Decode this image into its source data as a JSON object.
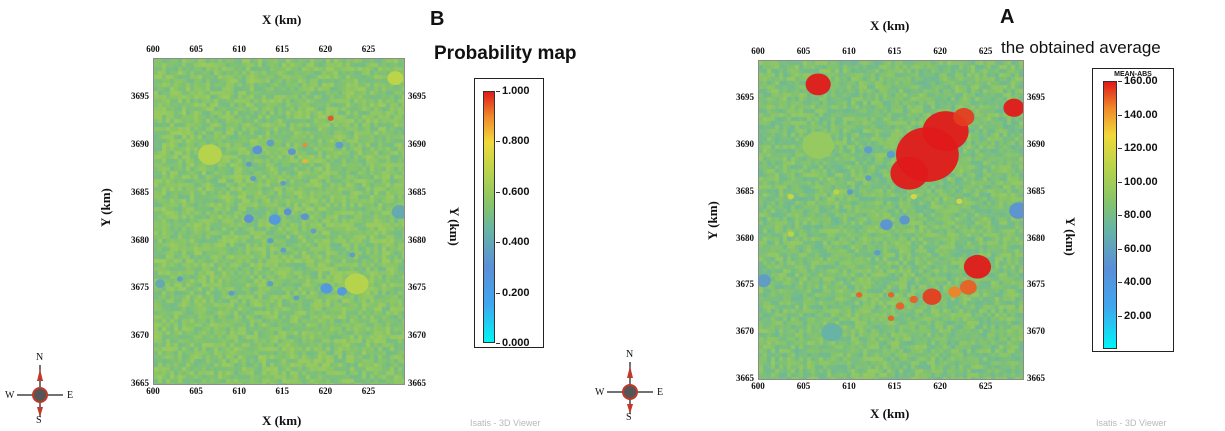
{
  "chart_data": [
    {
      "id": "B",
      "type": "heatmap",
      "panel_letter": "B",
      "title": "Probability map",
      "xlabel": "X (km)",
      "ylabel": "Y (km)",
      "xlim": [
        600,
        629
      ],
      "ylim": [
        3665,
        3699
      ],
      "x_ticks": [
        "600",
        "605",
        "610",
        "615",
        "620",
        "625"
      ],
      "y_ticks": [
        "3665",
        "3670",
        "3675",
        "3680",
        "3685",
        "3690",
        "3695"
      ],
      "colorbar": {
        "title": "",
        "range": [
          0.0,
          1.0
        ],
        "labels": [
          "1.000",
          "0.800",
          "0.600",
          "0.400",
          "0.200",
          "0.000"
        ],
        "label_values": [
          1.0,
          0.8,
          0.6,
          0.4,
          0.2,
          0.0
        ]
      },
      "background_value": 0.55,
      "anomalies": [
        {
          "x": 612.0,
          "y": 3689.5,
          "value": 0.3,
          "r": 0.5
        },
        {
          "x": 613.5,
          "y": 3690.2,
          "value": 0.35,
          "r": 0.4
        },
        {
          "x": 611.0,
          "y": 3688.0,
          "value": 0.35,
          "r": 0.3
        },
        {
          "x": 616.0,
          "y": 3689.3,
          "value": 0.32,
          "r": 0.4
        },
        {
          "x": 621.5,
          "y": 3690.0,
          "value": 0.35,
          "r": 0.4
        },
        {
          "x": 620.5,
          "y": 3692.8,
          "value": 0.95,
          "r": 0.3
        },
        {
          "x": 617.5,
          "y": 3690.0,
          "value": 0.9,
          "r": 0.25
        },
        {
          "x": 617.5,
          "y": 3688.3,
          "value": 0.85,
          "r": 0.25
        },
        {
          "x": 611.5,
          "y": 3686.5,
          "value": 0.35,
          "r": 0.3
        },
        {
          "x": 615.0,
          "y": 3686.0,
          "value": 0.35,
          "r": 0.3
        },
        {
          "x": 611.0,
          "y": 3682.3,
          "value": 0.3,
          "r": 0.5
        },
        {
          "x": 614.0,
          "y": 3682.2,
          "value": 0.25,
          "r": 0.6
        },
        {
          "x": 615.5,
          "y": 3683.0,
          "value": 0.3,
          "r": 0.4
        },
        {
          "x": 617.5,
          "y": 3682.5,
          "value": 0.32,
          "r": 0.4
        },
        {
          "x": 618.5,
          "y": 3681.0,
          "value": 0.35,
          "r": 0.3
        },
        {
          "x": 613.5,
          "y": 3680.0,
          "value": 0.35,
          "r": 0.3
        },
        {
          "x": 615.0,
          "y": 3679.0,
          "value": 0.35,
          "r": 0.3
        },
        {
          "x": 620.0,
          "y": 3675.0,
          "value": 0.25,
          "r": 0.6
        },
        {
          "x": 621.8,
          "y": 3674.7,
          "value": 0.25,
          "r": 0.5
        },
        {
          "x": 613.5,
          "y": 3675.5,
          "value": 0.35,
          "r": 0.3
        },
        {
          "x": 616.5,
          "y": 3674.0,
          "value": 0.35,
          "r": 0.3
        },
        {
          "x": 609.0,
          "y": 3674.5,
          "value": 0.35,
          "r": 0.3
        },
        {
          "x": 603.0,
          "y": 3676.0,
          "value": 0.35,
          "r": 0.3
        },
        {
          "x": 600.7,
          "y": 3675.5,
          "value": 0.4,
          "r": 0.5
        },
        {
          "x": 623.0,
          "y": 3678.5,
          "value": 0.35,
          "r": 0.3
        },
        {
          "x": 606.5,
          "y": 3689.0,
          "value": 0.68,
          "r": 1.2
        },
        {
          "x": 623.5,
          "y": 3675.5,
          "value": 0.68,
          "r": 1.2
        },
        {
          "x": 628.0,
          "y": 3697.0,
          "value": 0.7,
          "r": 0.8
        },
        {
          "x": 628.5,
          "y": 3683.0,
          "value": 0.4,
          "r": 0.8
        }
      ]
    },
    {
      "id": "A",
      "type": "heatmap",
      "panel_letter": "A",
      "title": "the obtained average",
      "xlabel": "X (km)",
      "ylabel": "Y (km)",
      "xlim": [
        600,
        629
      ],
      "ylim": [
        3665,
        3699
      ],
      "x_ticks": [
        "600",
        "605",
        "610",
        "615",
        "620",
        "625"
      ],
      "y_ticks": [
        "3665",
        "3670",
        "3675",
        "3680",
        "3685",
        "3690",
        "3695"
      ],
      "colorbar": {
        "title": "MEAN-ABS",
        "range": [
          0,
          160
        ],
        "labels": [
          "160.00",
          "140.00",
          "120.00",
          "100.00",
          "80.00",
          "60.00",
          "40.00",
          "20.00"
        ],
        "label_values": [
          160,
          140,
          120,
          100,
          80,
          60,
          40,
          20
        ]
      },
      "background_value": 85,
      "anomalies": [
        {
          "x": 606.5,
          "y": 3696.5,
          "value": 160,
          "r": 1.2
        },
        {
          "x": 618.5,
          "y": 3689.0,
          "value": 160,
          "r": 3.0
        },
        {
          "x": 620.5,
          "y": 3691.5,
          "value": 160,
          "r": 2.2
        },
        {
          "x": 616.5,
          "y": 3687.0,
          "value": 160,
          "r": 1.8
        },
        {
          "x": 622.5,
          "y": 3693.0,
          "value": 155,
          "r": 1.0
        },
        {
          "x": 628.0,
          "y": 3694.0,
          "value": 160,
          "r": 1.0
        },
        {
          "x": 624.0,
          "y": 3677.0,
          "value": 160,
          "r": 1.3
        },
        {
          "x": 623.0,
          "y": 3674.8,
          "value": 150,
          "r": 0.8
        },
        {
          "x": 619.0,
          "y": 3673.8,
          "value": 155,
          "r": 0.9
        },
        {
          "x": 621.5,
          "y": 3674.3,
          "value": 145,
          "r": 0.6
        },
        {
          "x": 617.0,
          "y": 3673.5,
          "value": 150,
          "r": 0.4
        },
        {
          "x": 615.5,
          "y": 3672.8,
          "value": 150,
          "r": 0.4
        },
        {
          "x": 614.5,
          "y": 3671.5,
          "value": 150,
          "r": 0.3
        },
        {
          "x": 611.0,
          "y": 3674.0,
          "value": 150,
          "r": 0.3
        },
        {
          "x": 614.5,
          "y": 3674.0,
          "value": 150,
          "r": 0.3
        },
        {
          "x": 612.0,
          "y": 3689.5,
          "value": 55,
          "r": 0.4
        },
        {
          "x": 614.5,
          "y": 3689.0,
          "value": 55,
          "r": 0.4
        },
        {
          "x": 614.0,
          "y": 3681.5,
          "value": 50,
          "r": 0.6
        },
        {
          "x": 616.0,
          "y": 3682.0,
          "value": 50,
          "r": 0.5
        },
        {
          "x": 612.0,
          "y": 3686.5,
          "value": 55,
          "r": 0.3
        },
        {
          "x": 610.0,
          "y": 3685.0,
          "value": 55,
          "r": 0.3
        },
        {
          "x": 613.0,
          "y": 3678.5,
          "value": 55,
          "r": 0.3
        },
        {
          "x": 603.5,
          "y": 3684.5,
          "value": 115,
          "r": 0.3
        },
        {
          "x": 608.5,
          "y": 3685.0,
          "value": 110,
          "r": 0.3
        },
        {
          "x": 603.5,
          "y": 3680.5,
          "value": 110,
          "r": 0.3
        },
        {
          "x": 622.0,
          "y": 3684.0,
          "value": 120,
          "r": 0.3
        },
        {
          "x": 617.0,
          "y": 3684.5,
          "value": 120,
          "r": 0.3
        },
        {
          "x": 628.5,
          "y": 3683.0,
          "value": 50,
          "r": 0.9
        },
        {
          "x": 600.5,
          "y": 3675.5,
          "value": 55,
          "r": 0.7
        },
        {
          "x": 606.5,
          "y": 3690.0,
          "value": 95,
          "r": 1.5
        },
        {
          "x": 608.0,
          "y": 3670.0,
          "value": 70,
          "r": 1.0
        }
      ]
    }
  ],
  "compass": {
    "n": "N",
    "s": "S",
    "e": "E",
    "w": "W"
  },
  "watermark": "Isatis - 3D Viewer"
}
